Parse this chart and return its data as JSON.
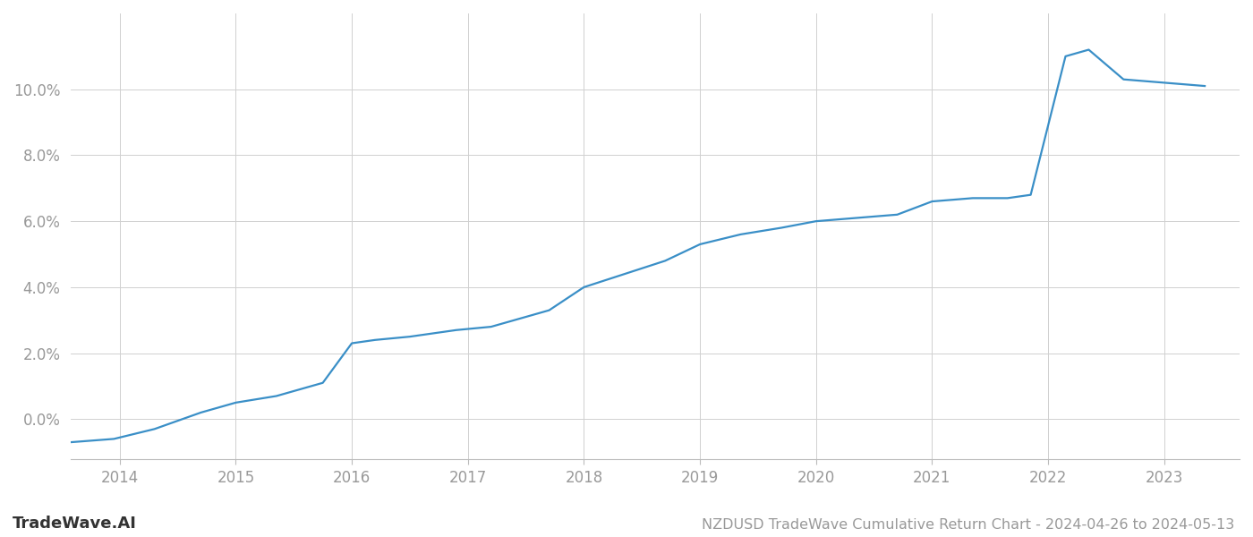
{
  "title": "NZDUSD TradeWave Cumulative Return Chart - 2024-04-26 to 2024-05-13",
  "watermark": "TradeWave.AI",
  "line_color": "#3a8fc7",
  "background_color": "#ffffff",
  "grid_color": "#d0d0d0",
  "x_data": [
    2013.58,
    2013.95,
    2014.3,
    2014.7,
    2015.0,
    2015.35,
    2015.75,
    2016.0,
    2016.2,
    2016.5,
    2016.9,
    2017.2,
    2017.7,
    2018.0,
    2018.35,
    2018.7,
    2019.0,
    2019.35,
    2019.7,
    2020.0,
    2020.35,
    2020.7,
    2021.0,
    2021.35,
    2021.65,
    2021.85,
    2022.15,
    2022.35,
    2022.65,
    2023.0,
    2023.35
  ],
  "y_data": [
    -0.007,
    -0.006,
    -0.003,
    0.002,
    0.005,
    0.007,
    0.011,
    0.023,
    0.024,
    0.025,
    0.027,
    0.028,
    0.033,
    0.04,
    0.044,
    0.048,
    0.053,
    0.056,
    0.058,
    0.06,
    0.061,
    0.062,
    0.066,
    0.067,
    0.067,
    0.068,
    0.11,
    0.112,
    0.103,
    0.102,
    0.101
  ],
  "xlim": [
    2013.58,
    2023.65
  ],
  "ylim": [
    -0.012,
    0.123
  ],
  "yticks": [
    0.0,
    0.02,
    0.04,
    0.06,
    0.08,
    0.1
  ],
  "ytick_labels": [
    "0.0%",
    "2.0%",
    "4.0%",
    "6.0%",
    "8.0%",
    "10.0%"
  ],
  "xticks": [
    2014,
    2015,
    2016,
    2017,
    2018,
    2019,
    2020,
    2021,
    2022,
    2023
  ],
  "xtick_labels": [
    "2014",
    "2015",
    "2016",
    "2017",
    "2018",
    "2019",
    "2020",
    "2021",
    "2022",
    "2023"
  ],
  "tick_color": "#999999",
  "label_fontsize": 12,
  "watermark_fontsize": 13,
  "title_fontsize": 11.5,
  "line_width": 1.6
}
